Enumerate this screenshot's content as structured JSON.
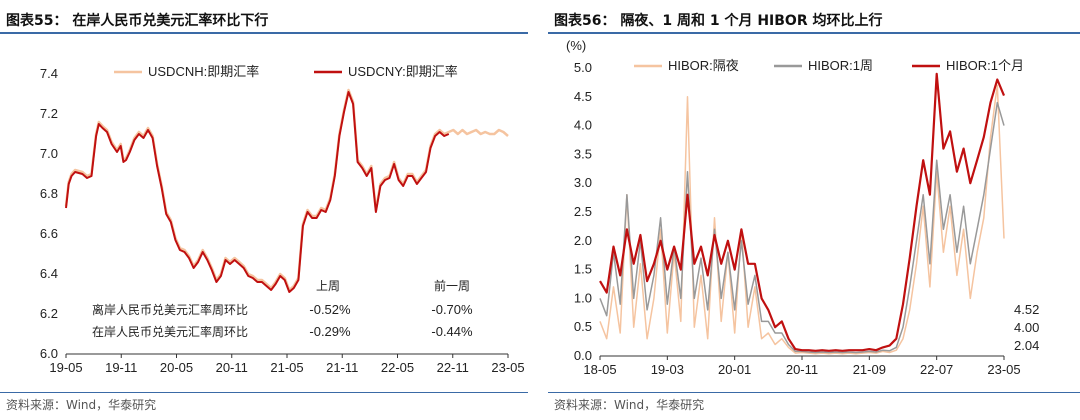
{
  "left": {
    "title": "图表55：  在岸人民币兑美元汇率环比下行",
    "source": "资料来源：Wind，华泰研究",
    "chart_data": {
      "type": "line",
      "ylim": [
        6.0,
        7.4
      ],
      "yticks": [
        "7.4",
        "7.2",
        "7.0",
        "6.8",
        "6.6",
        "6.4",
        "6.2",
        "6.0"
      ],
      "xticks": [
        "19-05",
        "19-11",
        "20-05",
        "20-11",
        "21-05",
        "21-11",
        "22-05",
        "22-11",
        "23-05"
      ],
      "legend_position": "top",
      "series": [
        {
          "name": "USDCNH:即期汇率",
          "color": "#f5c4a0",
          "x": [
            0,
            0.3,
            0.6,
            1.0,
            1.8,
            2.3,
            2.8,
            3.0,
            3.3,
            3.6,
            4.0,
            4.5,
            5.0,
            5.3,
            5.6,
            6.0,
            6.3,
            6.6,
            7.0,
            7.5,
            8.0,
            8.5,
            9.0,
            9.5,
            10.0,
            10.5,
            11.0,
            11.5,
            12.0,
            12.5,
            13.0,
            13.5,
            14.0,
            14.5,
            15.0,
            15.5,
            16.0,
            16.5,
            17.0,
            17.5,
            18.0,
            18.5,
            19.0,
            19.5,
            20.0,
            20.5,
            21.0,
            21.5,
            22.0,
            22.5,
            23.0,
            23.5,
            24.0,
            24.5,
            25.0,
            25.5,
            26.0,
            26.5,
            27.0,
            27.5,
            28.0,
            28.5,
            29.0,
            29.5,
            30.0,
            30.5,
            31.0,
            31.5,
            32.0,
            32.5,
            33.0,
            33.5,
            34.0,
            34.5,
            35.0,
            35.5,
            36.0,
            36.5,
            37.0,
            37.5,
            38.0,
            38.5,
            39.0,
            39.5,
            40.0,
            40.5,
            41.0,
            41.5,
            42.0,
            42.5,
            43.0,
            43.5,
            44.0,
            44.5,
            45.0,
            45.5,
            46.0,
            46.5,
            47.0,
            47.5,
            48.0,
            48.5
          ],
          "y": [
            6.74,
            6.86,
            6.9,
            6.92,
            6.91,
            6.89,
            6.9,
            6.98,
            7.1,
            7.16,
            7.14,
            7.12,
            7.06,
            7.04,
            7.02,
            7.05,
            6.97,
            6.98,
            7.02,
            7.08,
            7.11,
            7.09,
            7.13,
            7.09,
            6.95,
            6.84,
            6.71,
            6.67,
            6.58,
            6.53,
            6.52,
            6.49,
            6.44,
            6.47,
            6.52,
            6.48,
            6.43,
            6.37,
            6.4,
            6.48,
            6.46,
            6.48,
            6.46,
            6.44,
            6.4,
            6.39,
            6.37,
            6.37,
            6.35,
            6.33,
            6.36,
            6.4,
            6.38,
            6.32,
            6.34,
            6.38,
            6.65,
            6.72,
            6.69,
            6.69,
            6.73,
            6.72,
            6.78,
            6.9,
            7.1,
            7.22,
            7.32,
            7.26,
            6.97,
            6.94,
            6.9,
            6.94,
            6.72,
            6.85,
            6.88,
            6.89,
            6.96,
            6.88,
            6.85,
            6.9,
            6.9,
            6.86,
            6.89,
            6.92,
            7.04,
            7.1,
            7.12,
            7.1,
            7.11,
            7.12,
            7.1,
            7.12,
            7.1,
            7.11,
            7.12,
            7.1,
            7.11,
            7.1,
            7.1,
            7.12,
            7.11,
            7.09
          ]
        },
        {
          "name": "USDCNY:即期汇率",
          "color": "#c01010",
          "x": [
            0,
            0.3,
            0.6,
            1.0,
            1.8,
            2.3,
            2.8,
            3.0,
            3.3,
            3.6,
            4.0,
            4.5,
            5.0,
            5.3,
            5.6,
            6.0,
            6.3,
            6.6,
            7.0,
            7.5,
            8.0,
            8.5,
            9.0,
            9.5,
            10.0,
            10.5,
            11.0,
            11.5,
            12.0,
            12.5,
            13.0,
            13.5,
            14.0,
            14.5,
            15.0,
            15.5,
            16.0,
            16.5,
            17.0,
            17.5,
            18.0,
            18.5,
            19.0,
            19.5,
            20.0,
            20.5,
            21.0,
            21.5,
            22.0,
            22.5,
            23.0,
            23.5,
            24.0,
            24.5,
            25.0,
            25.5,
            26.0,
            26.5,
            27.0,
            27.5,
            28.0,
            28.5,
            29.0,
            29.5,
            30.0,
            30.5,
            31.0,
            31.5,
            32.0,
            32.5,
            33.0,
            33.5,
            34.0,
            34.5,
            35.0,
            35.5,
            36.0,
            36.5,
            37.0,
            37.5,
            38.0,
            38.5,
            39.0,
            39.5,
            40.0,
            40.5,
            41.0,
            41.5,
            42.0
          ],
          "y": [
            6.73,
            6.85,
            6.89,
            6.91,
            6.9,
            6.88,
            6.89,
            6.97,
            7.09,
            7.15,
            7.13,
            7.11,
            7.05,
            7.03,
            7.01,
            7.04,
            6.96,
            6.97,
            7.01,
            7.07,
            7.1,
            7.08,
            7.12,
            7.08,
            6.94,
            6.83,
            6.7,
            6.66,
            6.57,
            6.52,
            6.51,
            6.48,
            6.43,
            6.46,
            6.51,
            6.47,
            6.42,
            6.36,
            6.39,
            6.47,
            6.45,
            6.47,
            6.45,
            6.43,
            6.39,
            6.38,
            6.36,
            6.36,
            6.34,
            6.32,
            6.35,
            6.39,
            6.37,
            6.31,
            6.33,
            6.37,
            6.64,
            6.71,
            6.68,
            6.68,
            6.72,
            6.71,
            6.77,
            6.89,
            7.09,
            7.21,
            7.31,
            7.25,
            6.96,
            6.93,
            6.89,
            6.93,
            6.71,
            6.84,
            6.87,
            6.88,
            6.95,
            6.87,
            6.84,
            6.89,
            6.89,
            6.85,
            6.88,
            6.91,
            7.03,
            7.09,
            7.11,
            7.09,
            7.1
          ]
        }
      ]
    },
    "annotation": {
      "col_prev_week": "上周",
      "col_two_weeks": "前一周",
      "rows": [
        {
          "label": "离岸人民币兑美元汇率周环比",
          "prev": "-0.52%",
          "before": "-0.70%"
        },
        {
          "label": "在岸人民币兑美元汇率周环比",
          "prev": "-0.29%",
          "before": "-0.44%"
        }
      ]
    }
  },
  "right": {
    "title": "图表56：  隔夜、1 周和 1 个月  HIBOR 均环比上行",
    "source": "资料来源：Wind，华泰研究",
    "chart_data": {
      "type": "line",
      "yunit": "(%)",
      "ylim": [
        0.0,
        5.0
      ],
      "yticks": [
        "5.0",
        "4.5",
        "4.0",
        "3.5",
        "3.0",
        "2.5",
        "2.0",
        "1.5",
        "1.0",
        "0.5",
        "0.0"
      ],
      "xticks": [
        "18-05",
        "19-03",
        "20-01",
        "20-11",
        "21-09",
        "22-07",
        "23-05"
      ],
      "legend_position": "top",
      "end_labels": [
        {
          "text": "4.52",
          "color": "#c01010"
        },
        {
          "text": "4.00",
          "color": "#999999"
        },
        {
          "text": "2.04",
          "color": "#111111"
        }
      ],
      "series": [
        {
          "name": "HIBOR:隔夜",
          "color": "#f5c4a0",
          "x": [
            0,
            1,
            2,
            3,
            4,
            5,
            6,
            7,
            8,
            9,
            10,
            11,
            12,
            13,
            14,
            15,
            16,
            17,
            18,
            19,
            20,
            21,
            22,
            23,
            24,
            25,
            26,
            27,
            28,
            29,
            30,
            31,
            32,
            33,
            34,
            35,
            36,
            37,
            38,
            39,
            40,
            41,
            42,
            43,
            44,
            45,
            46,
            47,
            48,
            49,
            50,
            51,
            52,
            53,
            54,
            55,
            56,
            57,
            58,
            59,
            60
          ],
          "y": [
            0.6,
            0.3,
            1.2,
            0.4,
            2.8,
            0.5,
            1.6,
            0.3,
            1.0,
            2.2,
            0.4,
            1.8,
            0.6,
            4.5,
            0.5,
            1.4,
            0.3,
            2.4,
            0.6,
            1.8,
            0.4,
            2.2,
            0.5,
            1.2,
            0.3,
            0.4,
            0.2,
            0.3,
            0.15,
            0.05,
            0.06,
            0.05,
            0.04,
            0.05,
            0.04,
            0.05,
            0.04,
            0.05,
            0.04,
            0.05,
            0.06,
            0.05,
            0.08,
            0.06,
            0.1,
            0.3,
            0.8,
            1.6,
            2.6,
            1.2,
            3.2,
            1.8,
            2.6,
            1.4,
            2.2,
            1.0,
            1.8,
            2.4,
            3.8,
            4.7,
            2.04
          ]
        },
        {
          "name": "HIBOR:1周",
          "color": "#999999",
          "x": [
            0,
            1,
            2,
            3,
            4,
            5,
            6,
            7,
            8,
            9,
            10,
            11,
            12,
            13,
            14,
            15,
            16,
            17,
            18,
            19,
            20,
            21,
            22,
            23,
            24,
            25,
            26,
            27,
            28,
            29,
            30,
            31,
            32,
            33,
            34,
            35,
            36,
            37,
            38,
            39,
            40,
            41,
            42,
            43,
            44,
            45,
            46,
            47,
            48,
            49,
            50,
            51,
            52,
            53,
            54,
            55,
            56,
            57,
            58,
            59,
            60
          ],
          "y": [
            1.0,
            0.7,
            1.8,
            0.9,
            2.8,
            1.0,
            2.0,
            0.8,
            1.4,
            2.4,
            0.9,
            1.9,
            1.0,
            3.2,
            1.0,
            1.7,
            0.8,
            2.2,
            1.0,
            1.8,
            0.8,
            2.0,
            0.9,
            1.4,
            0.6,
            0.6,
            0.4,
            0.4,
            0.2,
            0.08,
            0.08,
            0.07,
            0.06,
            0.07,
            0.06,
            0.07,
            0.06,
            0.07,
            0.06,
            0.07,
            0.08,
            0.07,
            0.1,
            0.09,
            0.15,
            0.5,
            1.2,
            2.0,
            2.8,
            1.6,
            3.4,
            2.2,
            2.8,
            1.8,
            2.6,
            1.6,
            2.2,
            2.8,
            3.6,
            4.4,
            4.0
          ]
        },
        {
          "name": "HIBOR:1个月",
          "color": "#c01010",
          "x": [
            0,
            1,
            2,
            3,
            4,
            5,
            6,
            7,
            8,
            9,
            10,
            11,
            12,
            13,
            14,
            15,
            16,
            17,
            18,
            19,
            20,
            21,
            22,
            23,
            24,
            25,
            26,
            27,
            28,
            29,
            30,
            31,
            32,
            33,
            34,
            35,
            36,
            37,
            38,
            39,
            40,
            41,
            42,
            43,
            44,
            45,
            46,
            47,
            48,
            49,
            50,
            51,
            52,
            53,
            54,
            55,
            56,
            57,
            58,
            59,
            60
          ],
          "y": [
            1.3,
            1.1,
            1.9,
            1.4,
            2.2,
            1.6,
            2.1,
            1.3,
            1.6,
            2.0,
            1.5,
            1.9,
            1.5,
            2.8,
            1.6,
            1.9,
            1.4,
            2.1,
            1.6,
            2.0,
            1.5,
            2.2,
            1.6,
            1.6,
            1.0,
            0.8,
            0.5,
            0.6,
            0.3,
            0.12,
            0.1,
            0.1,
            0.09,
            0.1,
            0.09,
            0.1,
            0.09,
            0.1,
            0.1,
            0.1,
            0.12,
            0.1,
            0.15,
            0.18,
            0.3,
            0.9,
            1.7,
            2.6,
            3.4,
            2.8,
            4.9,
            3.6,
            3.9,
            3.2,
            3.6,
            3.0,
            3.4,
            3.8,
            4.4,
            4.8,
            4.52
          ]
        }
      ]
    }
  }
}
